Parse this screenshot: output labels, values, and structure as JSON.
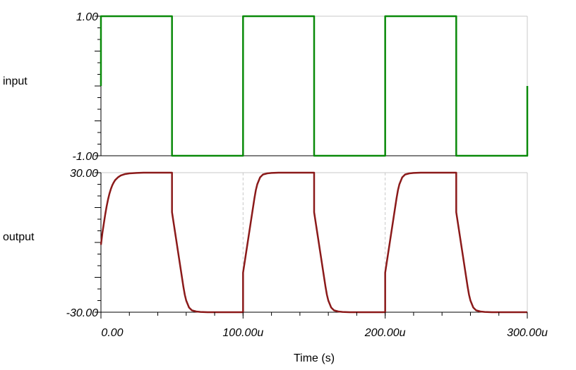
{
  "colors": {
    "input": "#0a8a0a",
    "output": "#8b1a1a",
    "grid": "#c8c8c8",
    "axis": "#000000",
    "label_input": "#000000",
    "label_output": "#8b1a1a"
  },
  "chart_data": [
    {
      "type": "line",
      "series": [
        {
          "name": "input",
          "x": [
            0,
            0,
            50,
            50,
            100,
            100,
            150,
            150,
            200,
            200,
            250,
            250,
            300,
            300
          ],
          "y": [
            0,
            1,
            1,
            -1,
            -1,
            1,
            1,
            -1,
            -1,
            1,
            1,
            -1,
            -1,
            0
          ]
        }
      ],
      "ylabel": "input",
      "ylim": [
        -1,
        1
      ],
      "yticks": [
        1,
        -1
      ],
      "yticklabels": [
        "1.00",
        "-1.00"
      ],
      "xlim": [
        0,
        300
      ],
      "grid": true
    },
    {
      "type": "line",
      "series": [
        {
          "name": "output",
          "x": [
            0,
            1,
            2,
            3,
            4,
            5,
            6,
            7,
            8,
            9,
            10,
            12,
            14,
            17,
            20,
            25,
            30,
            40,
            50,
            50,
            51,
            52,
            53,
            54,
            55,
            56,
            57,
            58,
            59,
            60,
            62,
            64,
            67,
            70,
            75,
            80,
            90,
            100,
            100,
            101,
            102,
            103,
            104,
            105,
            106,
            107,
            108,
            109,
            110,
            112,
            114,
            117,
            120,
            125,
            130,
            140,
            150,
            150,
            151,
            152,
            153,
            154,
            155,
            156,
            157,
            158,
            159,
            160,
            162,
            164,
            167,
            170,
            175,
            180,
            190,
            200,
            200,
            201,
            202,
            203,
            204,
            205,
            206,
            207,
            208,
            209,
            210,
            212,
            214,
            217,
            220,
            225,
            230,
            240,
            250,
            250,
            251,
            252,
            253,
            254,
            255,
            256,
            257,
            258,
            259,
            260,
            262,
            264,
            267,
            270,
            275,
            280,
            290,
            300
          ],
          "y": [
            -1.0,
            4.0,
            8.0,
            12.0,
            15.5,
            18.5,
            21.0,
            23.0,
            24.6,
            25.8,
            26.8,
            28.0,
            28.8,
            29.4,
            29.7,
            29.9,
            30.0,
            30.0,
            30.0,
            13.0,
            9.0,
            5.0,
            1.0,
            -3.0,
            -7.0,
            -11.0,
            -15.0,
            -19.0,
            -22.5,
            -25.0,
            -28.0,
            -29.2,
            -29.7,
            -29.9,
            -30.0,
            -30.0,
            -30.0,
            -30.0,
            -13.0,
            -9.0,
            -5.0,
            -1.0,
            3.0,
            7.0,
            11.0,
            15.0,
            19.0,
            22.5,
            25.0,
            28.0,
            29.2,
            29.7,
            29.9,
            30.0,
            30.0,
            30.0,
            30.0,
            13.0,
            9.0,
            5.0,
            1.0,
            -3.0,
            -7.0,
            -11.0,
            -15.0,
            -19.0,
            -22.5,
            -25.0,
            -28.0,
            -29.2,
            -29.7,
            -29.9,
            -30.0,
            -30.0,
            -30.0,
            -30.0,
            -13.0,
            -9.0,
            -5.0,
            -1.0,
            3.0,
            7.0,
            11.0,
            15.0,
            19.0,
            22.5,
            25.0,
            28.0,
            29.2,
            29.7,
            29.9,
            30.0,
            30.0,
            30.0,
            30.0,
            13.0,
            9.0,
            5.0,
            1.0,
            -3.0,
            -7.0,
            -11.0,
            -15.0,
            -19.0,
            -22.5,
            -25.0,
            -28.0,
            -29.2,
            -29.7,
            -29.9,
            -30.0,
            -30.0,
            -30.0,
            -30.0
          ]
        }
      ],
      "ylabel": "output",
      "ylim": [
        -30,
        30
      ],
      "yticks": [
        30,
        -30
      ],
      "yticklabels": [
        "30.00",
        "-30.00"
      ],
      "xlim": [
        0,
        300
      ],
      "xticks": [
        0,
        100,
        200,
        300
      ],
      "xticklabels": [
        "0.00",
        "100.00u",
        "200.00u",
        "300.00u"
      ],
      "xlabel": "Time (s)",
      "grid": true
    }
  ]
}
